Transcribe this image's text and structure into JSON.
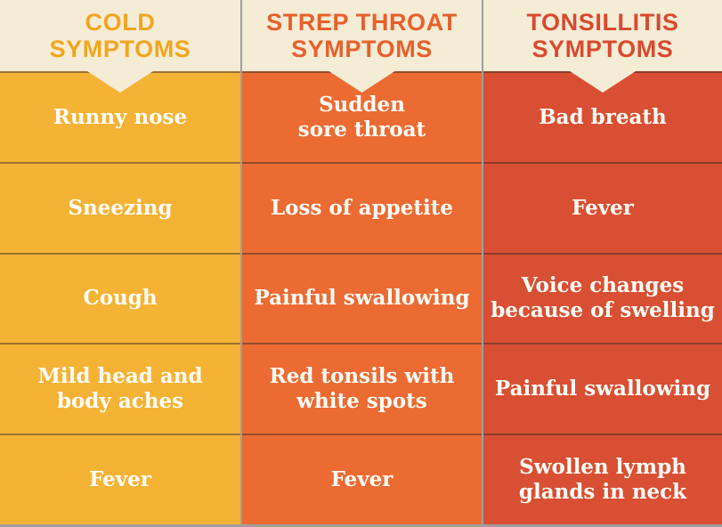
{
  "table": {
    "header_bg": "#F5ECD6",
    "cell_text_color": "#FFFEF8",
    "divider_color": "rgba(40,40,40,0.45)",
    "columns": [
      {
        "header": "COLD\nSYMPTOMS",
        "header_color": "#F2A51F",
        "body_color": "#F5B335",
        "rows": [
          "Runny nose",
          "Sneezing",
          "Cough",
          "Mild head and\nbody aches",
          "Fever"
        ]
      },
      {
        "header": "STREP THROAT\nSYMPTOMS",
        "header_color": "#E7612B",
        "body_color": "#EC6B33",
        "rows": [
          "Sudden\nsore throat",
          "Loss of appetite",
          "Painful swallowing",
          "Red tonsils with\nwhite spots",
          "Fever"
        ]
      },
      {
        "header": "TONSILLITIS\nSYMPTOMS",
        "header_color": "#D94A2F",
        "body_color": "#D94F33",
        "rows": [
          "Bad breath",
          "Fever",
          "Voice changes\nbecause of swelling",
          "Painful swallowing",
          "Swollen lymph\nglands in neck"
        ]
      }
    ]
  }
}
